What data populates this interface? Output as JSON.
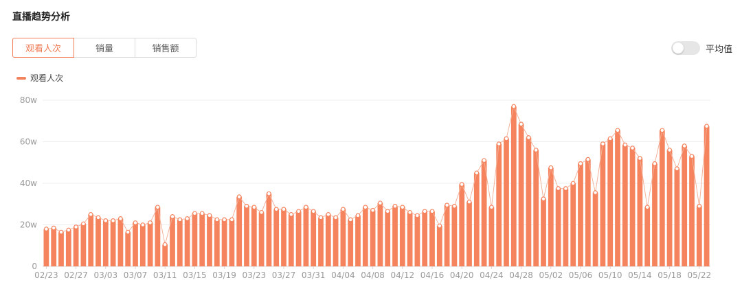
{
  "header": {
    "title": "直播趋势分析"
  },
  "tabs": [
    {
      "label": "观看人次",
      "active": true
    },
    {
      "label": "销量",
      "active": false
    },
    {
      "label": "销售额",
      "active": false
    }
  ],
  "average_toggle": {
    "label": "平均值",
    "on": false
  },
  "colors": {
    "accent": "#f07b55",
    "bar": "#f5845e",
    "grid": "#ececec",
    "axis_text": "#999999"
  },
  "chart_data": {
    "type": "bar",
    "legend": [
      "观看人次"
    ],
    "yticks": [
      "0",
      "20w",
      "40w",
      "60w",
      "80w"
    ],
    "ylim": [
      0,
      80
    ],
    "x_tick_labels": [
      "02/23",
      "02/27",
      "03/03",
      "03/07",
      "03/11",
      "03/15",
      "03/19",
      "03/23",
      "03/27",
      "03/31",
      "04/04",
      "04/08",
      "04/12",
      "04/16",
      "04/20",
      "04/24",
      "04/28",
      "05/02",
      "05/06",
      "05/10",
      "05/14",
      "05/18",
      "05/22"
    ],
    "series": [
      {
        "name": "观看人次",
        "values": [
          18,
          18.5,
          16.5,
          17.5,
          19,
          20.5,
          25,
          23.5,
          22,
          22,
          23,
          16.5,
          21,
          20,
          21,
          28.5,
          10.5,
          24,
          22.5,
          23,
          25.5,
          25.5,
          24.5,
          22.5,
          22.5,
          22.5,
          33.5,
          29,
          28.5,
          26,
          35,
          27.5,
          27.5,
          25,
          26.5,
          28.5,
          26.5,
          23.5,
          25,
          23.5,
          27.5,
          22.5,
          24.5,
          28.5,
          27,
          30.5,
          26.5,
          29,
          28.5,
          26,
          24.5,
          26.5,
          26.5,
          19.5,
          29.5,
          29,
          39.5,
          31,
          45,
          51,
          28.5,
          59,
          61.5,
          77,
          68.5,
          62,
          56,
          32.5,
          47.5,
          37.5,
          37.5,
          40,
          49.5,
          51.5,
          35.5,
          59,
          61.5,
          65.5,
          58.5,
          57,
          52,
          28.5,
          49.5,
          65.5,
          56,
          47,
          58,
          53,
          29,
          67.5
        ]
      }
    ]
  }
}
